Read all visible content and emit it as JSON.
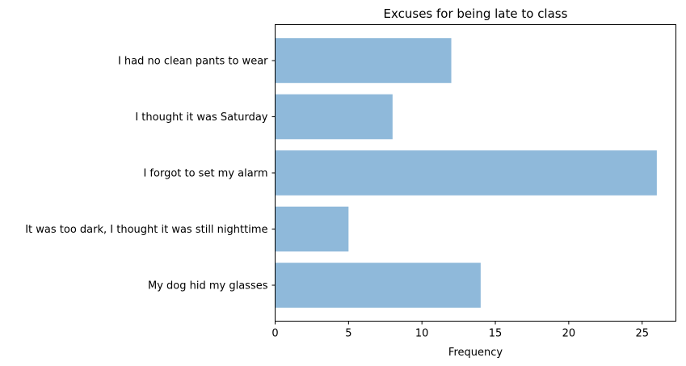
{
  "chart_data": {
    "type": "bar",
    "orientation": "horizontal",
    "title": "Excuses for being late to class",
    "xlabel": "Frequency",
    "ylabel": "",
    "categories": [
      "My dog hid my glasses",
      "It was too dark, I thought it was still nighttime",
      "I forgot to set my alarm",
      "I thought it was Saturday",
      "I had no clean pants to wear"
    ],
    "values": [
      14,
      5,
      26,
      8,
      12
    ],
    "xlim": [
      0,
      27.3
    ],
    "xticks": [
      0,
      5,
      10,
      15,
      20,
      25
    ],
    "bar_color": "#8fb9da",
    "grid": false,
    "legend": false
  }
}
